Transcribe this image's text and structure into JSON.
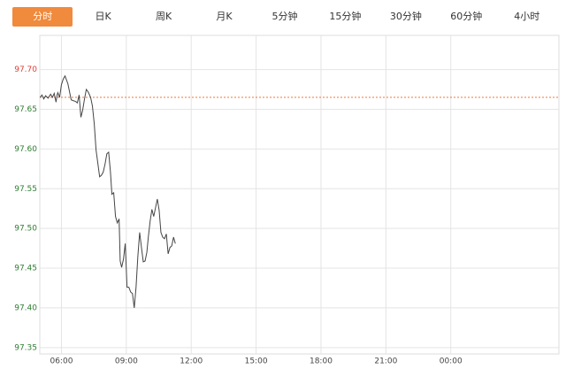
{
  "tabs": [
    "分时",
    "日K",
    "周K",
    "月K",
    "5分钟",
    "15分钟",
    "30分钟",
    "60分钟",
    "4小时"
  ],
  "selected_tab": 0,
  "chart_data": {
    "type": "line",
    "x": [
      301,
      306,
      311,
      316,
      323,
      330,
      335,
      340,
      345,
      348,
      350,
      355,
      360,
      365,
      370,
      378,
      387,
      392,
      399,
      404,
      409,
      414,
      419,
      424,
      429,
      434,
      441,
      446,
      451,
      456,
      461,
      466,
      471,
      476,
      481,
      486,
      491,
      496,
      500,
      505,
      510,
      515,
      520,
      523,
      527,
      532,
      537,
      542,
      547,
      552,
      557,
      562,
      567,
      572,
      577,
      582,
      587,
      592,
      597,
      601,
      606,
      611,
      616,
      621,
      626,
      631,
      636,
      641,
      646,
      651,
      656,
      661,
      666,
      671,
      676
    ],
    "series": [
      {
        "name": "price",
        "color": "#444444",
        "values": [
          97.665,
          97.668,
          97.663,
          97.667,
          97.664,
          97.669,
          97.665,
          97.67,
          97.659,
          97.668,
          97.671,
          97.665,
          97.681,
          97.688,
          97.692,
          97.682,
          97.662,
          97.661,
          97.66,
          97.658,
          97.668,
          97.64,
          97.649,
          97.663,
          97.675,
          97.672,
          97.665,
          97.654,
          97.632,
          97.599,
          97.582,
          97.565,
          97.567,
          97.571,
          97.581,
          97.594,
          97.596,
          97.571,
          97.543,
          97.545,
          97.515,
          97.507,
          97.512,
          97.459,
          97.451,
          97.461,
          97.481,
          97.426,
          97.426,
          97.42,
          97.418,
          97.4,
          97.426,
          97.465,
          97.495,
          97.476,
          97.458,
          97.459,
          97.47,
          97.489,
          97.509,
          97.524,
          97.515,
          97.526,
          97.537,
          97.523,
          97.495,
          97.489,
          97.487,
          97.493,
          97.468,
          97.476,
          97.478,
          97.489,
          97.481
        ]
      }
    ],
    "xlim": [
      300,
      1740
    ],
    "xticks": [
      {
        "value": 360,
        "label": "06:00"
      },
      {
        "value": 540,
        "label": "09:00"
      },
      {
        "value": 720,
        "label": "12:00"
      },
      {
        "value": 900,
        "label": "15:00"
      },
      {
        "value": 1080,
        "label": "18:00"
      },
      {
        "value": 1260,
        "label": "21:00"
      },
      {
        "value": 1440,
        "label": "00:00"
      }
    ],
    "ylim": [
      97.342,
      97.743
    ],
    "yticks": [
      {
        "value": 97.35,
        "label": "97.35"
      },
      {
        "value": 97.4,
        "label": "97.40"
      },
      {
        "value": 97.45,
        "label": "97.45"
      },
      {
        "value": 97.5,
        "label": "97.50"
      },
      {
        "value": 97.55,
        "label": "97.55"
      },
      {
        "value": 97.6,
        "label": "97.60"
      },
      {
        "value": 97.65,
        "label": "97.65"
      },
      {
        "value": 97.7,
        "label": "97.70"
      }
    ],
    "reference_line": 97.665,
    "reference_color": "#f0743a",
    "up_color": "#e03c31",
    "down_color": "#2e7d32",
    "grid": true
  }
}
